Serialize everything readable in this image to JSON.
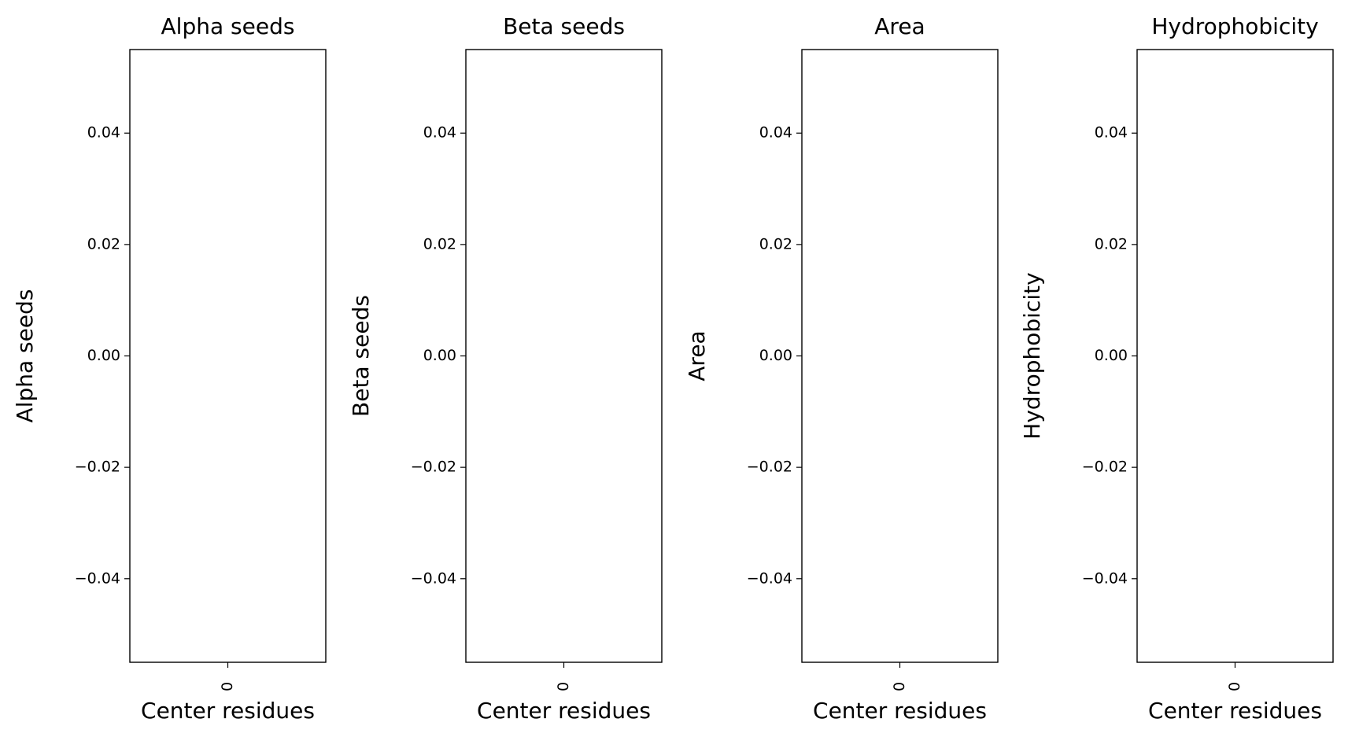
{
  "chart_data": [
    {
      "type": "bar",
      "title": "Alpha seeds",
      "x_label": "Center residues",
      "y_label": "Alpha seeds",
      "categories": [
        "0"
      ],
      "values": [
        null
      ],
      "ylim": [
        -0.055,
        0.055
      ],
      "yticks": [
        {
          "value": -0.04,
          "label": "−0.04"
        },
        {
          "value": -0.02,
          "label": "−0.02"
        },
        {
          "value": 0,
          "label": "0.00"
        },
        0.02,
        0.04
      ]
    },
    {
      "type": "bar",
      "title": "Beta seeds",
      "x_label": "Center residues",
      "y_label": "Beta seeds",
      "categories": [
        "0"
      ],
      "values": [
        null
      ],
      "ylim": [
        -0.055,
        0.055
      ],
      "yticks": [
        {
          "value": -0.04,
          "label": "−0.04"
        },
        {
          "value": -0.02,
          "label": "−0.02"
        },
        {
          "value": 0,
          "label": "0.00"
        },
        0.02,
        0.04
      ]
    },
    {
      "type": "bar",
      "title": "Area",
      "x_label": "Center residues",
      "y_label": "Area",
      "categories": [
        "0"
      ],
      "values": [
        null
      ],
      "ylim": [
        -0.055,
        0.055
      ],
      "yticks": [
        {
          "value": -0.04,
          "label": "−0.04"
        },
        {
          "value": -0.02,
          "label": "−0.02"
        },
        {
          "value": 0,
          "label": "0.00"
        },
        0.02,
        0.04
      ]
    },
    {
      "type": "bar",
      "title": "Hydrophobicity",
      "x_label": "Center residues",
      "y_label": "Hydrophobicity",
      "categories": [
        "0"
      ],
      "values": [
        null
      ],
      "ylim": [
        -0.055,
        0.055
      ],
      "yticks": [
        {
          "value": -0.04,
          "label": "−0.04"
        },
        {
          "value": -0.02,
          "label": "−0.02"
        },
        {
          "value": 0,
          "label": "0.00"
        },
        0.02,
        0.04
      ]
    }
  ]
}
